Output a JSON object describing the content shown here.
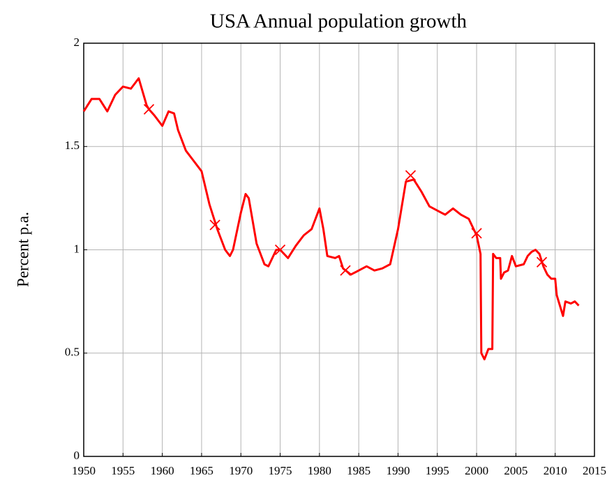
{
  "chart_data": {
    "type": "line",
    "title": "USA Annual population growth",
    "y_label": "Percent p.a.",
    "xlim": [
      1950,
      2015
    ],
    "xticks": [
      1950,
      1955,
      1960,
      1965,
      1970,
      1975,
      1980,
      1985,
      1990,
      1995,
      2000,
      2005,
      2010,
      2015
    ],
    "ylim": [
      0,
      2
    ],
    "yticks": [
      0,
      0.5,
      1,
      1.5,
      2
    ],
    "grid": true,
    "series": [
      {
        "style": "line",
        "color": "#ff0000",
        "x": [
          1950,
          1951,
          1952,
          1953,
          1954,
          1955,
          1956,
          1957,
          1958,
          1958.3,
          1959,
          1960,
          1960.8,
          1961.5,
          1962,
          1963,
          1964,
          1965,
          1966,
          1967,
          1968,
          1968.6,
          1969,
          1970,
          1970.6,
          1971,
          1972,
          1973,
          1973.5,
          1974.5,
          1975,
          1976,
          1977,
          1978,
          1979,
          1980,
          1980.5,
          1981,
          1982,
          1982.5,
          1983,
          1984,
          1985,
          1986,
          1987,
          1988,
          1989,
          1990,
          1991,
          1992,
          1993,
          1994,
          1995,
          1996,
          1997,
          1998,
          1999,
          2000,
          2000.5,
          2000.6,
          2001,
          2001.5,
          2002,
          2002.1,
          2002.5,
          2003,
          2003.1,
          2003.5,
          2004,
          2004.5,
          2005,
          2006,
          2006.5,
          2007,
          2007.5,
          2008,
          2008.5,
          2009,
          2009.5,
          2010,
          2010.2,
          2011,
          2011.3,
          2012,
          2012.5,
          2013
        ],
        "values": [
          1.67,
          1.73,
          1.73,
          1.67,
          1.75,
          1.79,
          1.78,
          1.83,
          1.7,
          1.68,
          1.65,
          1.6,
          1.67,
          1.66,
          1.58,
          1.48,
          1.43,
          1.38,
          1.22,
          1.1,
          1.0,
          0.97,
          1.0,
          1.18,
          1.27,
          1.25,
          1.03,
          0.93,
          0.92,
          1.0,
          1.0,
          0.96,
          1.02,
          1.07,
          1.1,
          1.2,
          1.1,
          0.97,
          0.96,
          0.97,
          0.91,
          0.88,
          0.9,
          0.92,
          0.9,
          0.91,
          0.93,
          1.1,
          1.33,
          1.34,
          1.28,
          1.21,
          1.19,
          1.17,
          1.2,
          1.17,
          1.15,
          1.07,
          0.98,
          0.5,
          0.47,
          0.52,
          0.52,
          0.98,
          0.96,
          0.96,
          0.86,
          0.89,
          0.9,
          0.97,
          0.92,
          0.93,
          0.97,
          0.99,
          1.0,
          0.98,
          0.92,
          0.88,
          0.86,
          0.86,
          0.78,
          0.68,
          0.75,
          0.74,
          0.75,
          0.73
        ]
      },
      {
        "style": "markers",
        "marker": "x",
        "color": "#ff0000",
        "x": [
          1958.3,
          1966.7,
          1975,
          1983.3,
          1991.6,
          2000,
          2008.3
        ],
        "values": [
          1.68,
          1.12,
          1.0,
          0.9,
          1.36,
          1.08,
          0.94
        ]
      }
    ]
  }
}
